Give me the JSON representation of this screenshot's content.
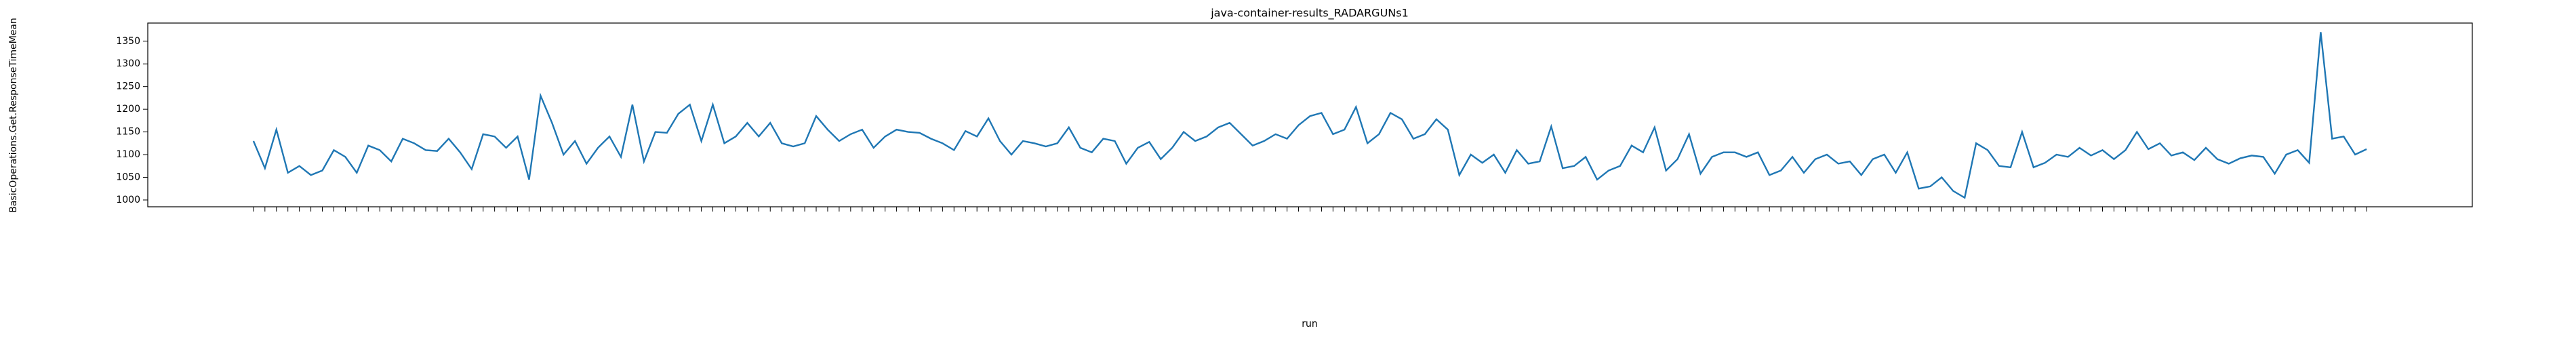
{
  "chart_data": {
    "type": "line",
    "title": "java-container-results_RADARGUNs1",
    "x_label": "run",
    "y_label": "BasicOperations.Get.ResponseTimeMean",
    "categories": [
      null,
      null,
      null,
      null,
      null,
      null,
      null,
      null,
      null,
      null,
      null,
      null,
      null,
      null,
      null,
      null,
      null,
      null,
      null,
      null,
      null,
      null,
      null,
      null,
      null,
      null,
      null,
      null,
      null,
      null,
      null,
      null,
      null,
      null,
      null,
      null,
      null,
      null,
      null,
      null,
      null,
      null,
      null,
      null,
      null,
      null,
      null,
      null,
      null,
      null,
      null,
      null,
      null,
      null,
      null,
      null,
      null,
      null,
      null,
      null,
      null,
      null,
      null,
      null,
      null,
      null,
      null,
      null,
      null,
      null,
      null,
      null,
      null,
      null,
      null,
      null,
      null,
      null,
      null,
      null,
      null,
      null,
      null,
      null,
      null,
      null,
      null,
      null,
      null,
      null,
      null,
      null,
      null,
      null,
      null,
      null,
      null,
      null,
      null,
      null,
      null,
      null,
      null,
      null,
      null,
      null,
      null,
      null,
      null,
      null,
      null,
      null,
      null,
      null,
      null,
      null,
      null,
      null,
      null,
      null,
      null,
      null,
      null,
      null,
      null,
      null,
      null,
      null,
      null,
      null,
      null,
      null,
      null,
      null,
      null,
      null,
      null,
      null,
      null,
      null,
      null,
      null,
      null,
      null,
      null,
      null,
      null,
      null,
      null,
      null,
      null,
      null,
      null,
      null,
      null,
      null,
      null,
      null,
      null,
      null,
      null,
      null,
      null,
      null,
      null,
      null,
      null,
      null,
      null,
      null,
      null,
      null,
      null,
      null,
      null,
      null,
      null,
      null,
      null,
      null,
      null,
      null,
      null,
      null,
      null
    ],
    "series": [
      {
        "color": "#1f77b4",
        "values": [
          1130,
          1070,
          1155,
          1060,
          1075,
          1055,
          1065,
          1110,
          1095,
          1060,
          1120,
          1110,
          1085,
          1135,
          1125,
          1110,
          1108,
          1135,
          1105,
          1068,
          1145,
          1140,
          1115,
          1140,
          1045,
          1230,
          1170,
          1100,
          1130,
          1080,
          1115,
          1140,
          1095,
          1210,
          1085,
          1150,
          1148,
          1190,
          1210,
          1130,
          1210,
          1125,
          1140,
          1170,
          1140,
          1170,
          1125,
          1118,
          1125,
          1185,
          1155,
          1130,
          1145,
          1155,
          1115,
          1140,
          1155,
          1150,
          1148,
          1135,
          1125,
          1110,
          1152,
          1140,
          1180,
          1130,
          1100,
          1130,
          1125,
          1118,
          1125,
          1160,
          1115,
          1105,
          1135,
          1130,
          1080,
          1115,
          1128,
          1090,
          1115,
          1150,
          1130,
          1140,
          1160,
          1170,
          1145,
          1120,
          1130,
          1145,
          1135,
          1165,
          1185,
          1192,
          1145,
          1155,
          1205,
          1125,
          1145,
          1192,
          1178,
          1135,
          1145,
          1178,
          1155,
          1055,
          1100,
          1082,
          1100,
          1060,
          1110,
          1080,
          1085,
          1162,
          1070,
          1075,
          1095,
          1045,
          1065,
          1075,
          1120,
          1105,
          1160,
          1065,
          1090,
          1145,
          1058,
          1095,
          1105,
          1105,
          1095,
          1105,
          1055,
          1065,
          1095,
          1060,
          1090,
          1100,
          1080,
          1085,
          1055,
          1090,
          1100,
          1060,
          1105,
          1025,
          1030,
          1050,
          1020,
          1005,
          1125,
          1110,
          1075,
          1072,
          1150,
          1072,
          1082,
          1100,
          1095,
          1115,
          1098,
          1110,
          1090,
          1110,
          1150,
          1112,
          1125,
          1098,
          1105,
          1088,
          1115,
          1090,
          1080,
          1092,
          1098,
          1095,
          1058,
          1100,
          1110,
          1082,
          1370,
          1135,
          1140,
          1100,
          1112
        ]
      }
    ],
    "ylim": [
      985,
      1390
    ],
    "yticks": [
      1000,
      1050,
      1100,
      1150,
      1200,
      1250,
      1300,
      1350
    ],
    "grid": false
  }
}
